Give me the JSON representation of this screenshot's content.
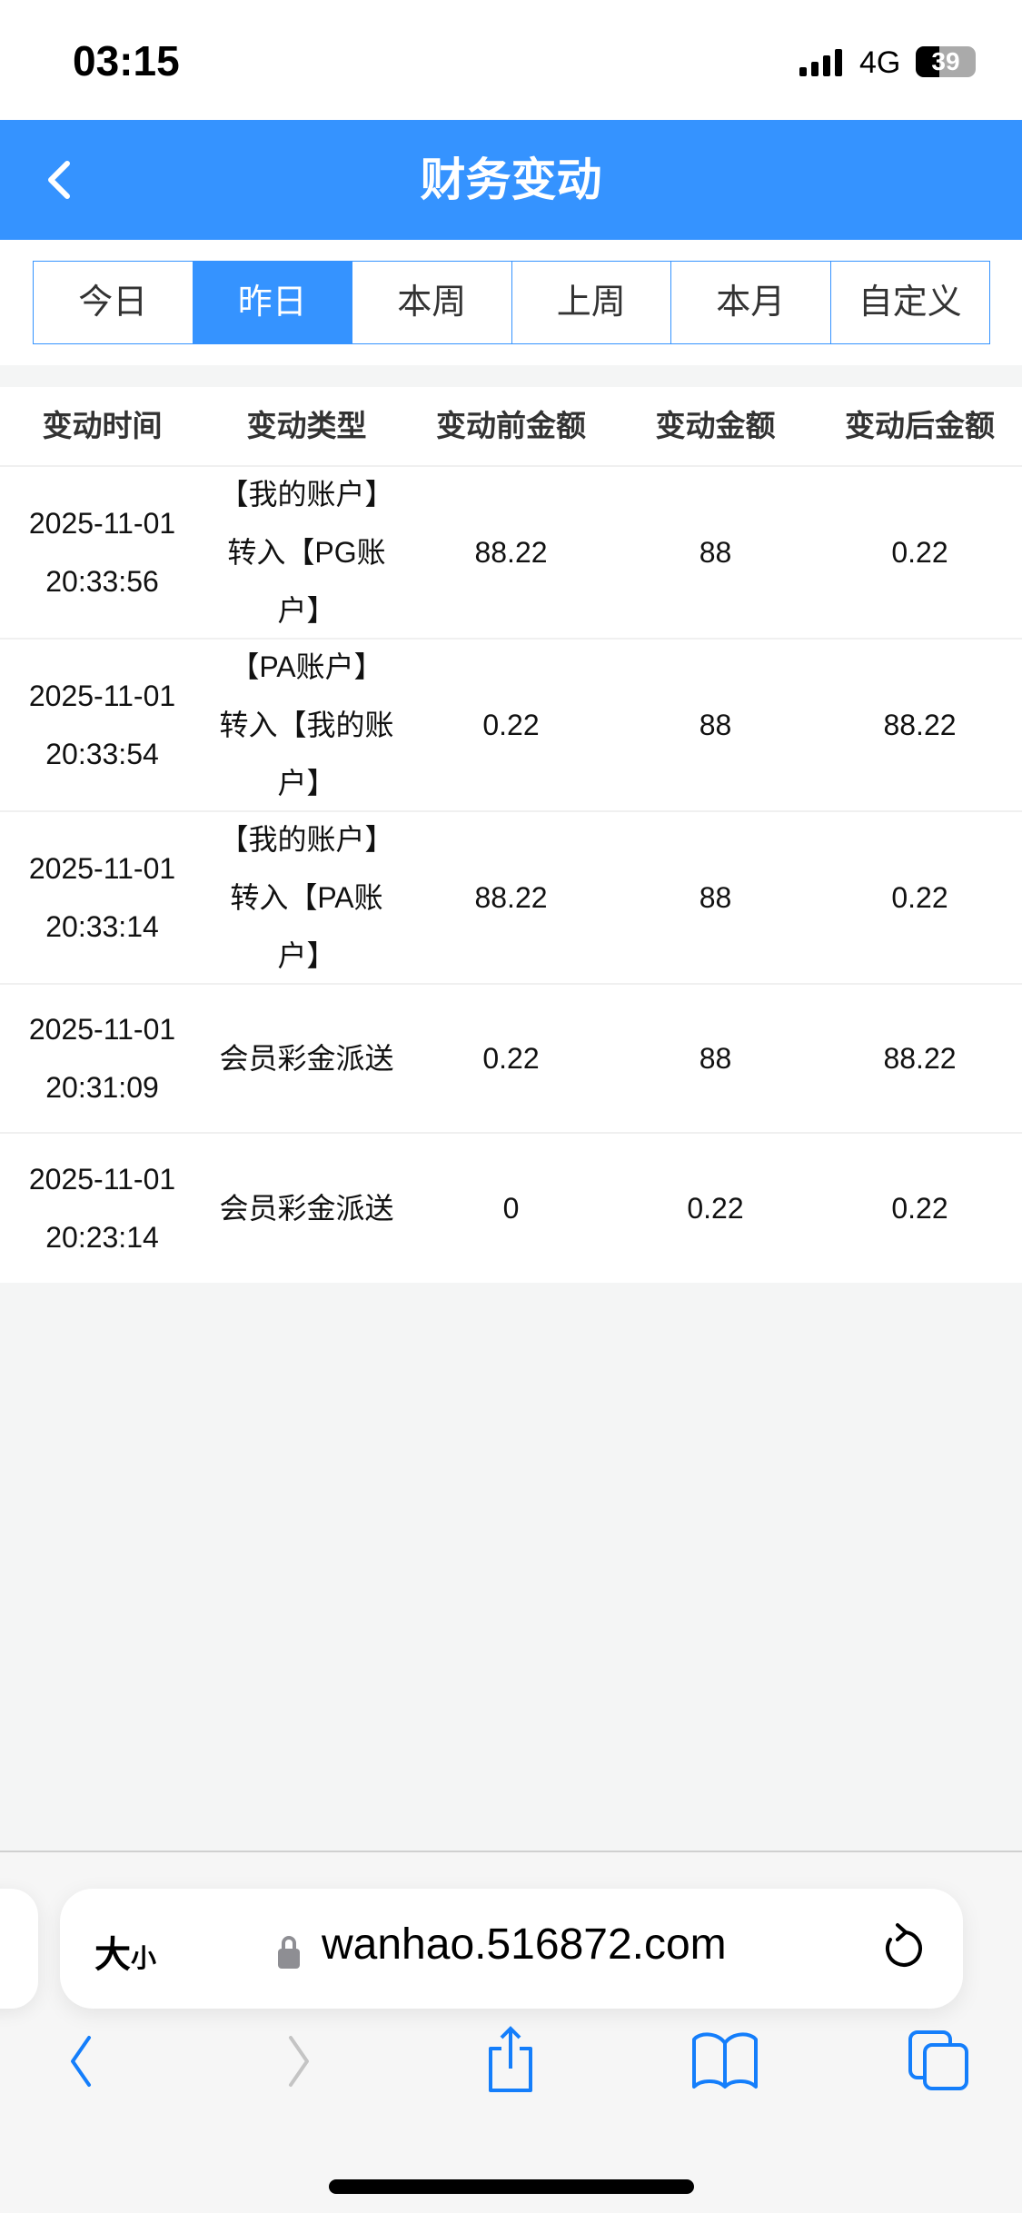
{
  "status_bar": {
    "time": "03:15",
    "network": "4G",
    "battery": "39",
    "battery_level": 39
  },
  "header": {
    "title": "财务变动",
    "back_icon": "chevron-left-icon"
  },
  "tabs": [
    {
      "label": "今日",
      "active": false
    },
    {
      "label": "昨日",
      "active": true
    },
    {
      "label": "本周",
      "active": false
    },
    {
      "label": "上周",
      "active": false
    },
    {
      "label": "本月",
      "active": false
    },
    {
      "label": "自定义",
      "active": false
    }
  ],
  "table": {
    "columns": [
      "变动时间",
      "变动类型",
      "变动前金额",
      "变动金额",
      "变动后金额"
    ],
    "rows": [
      {
        "date": "2025-11-01",
        "time": "20:33:56",
        "type": "【我的账户】转入【PG账户】",
        "before": "88.22",
        "amount": "88",
        "after": "0.22"
      },
      {
        "date": "2025-11-01",
        "time": "20:33:54",
        "type": "【PA账户】转入【我的账户】",
        "before": "0.22",
        "amount": "88",
        "after": "88.22"
      },
      {
        "date": "2025-11-01",
        "time": "20:33:14",
        "type": "【我的账户】转入【PA账户】",
        "before": "88.22",
        "amount": "88",
        "after": "0.22"
      },
      {
        "date": "2025-11-01",
        "time": "20:31:09",
        "type": "会员彩金派送",
        "before": "0.22",
        "amount": "88",
        "after": "88.22"
      },
      {
        "date": "2025-11-01",
        "time": "20:23:14",
        "type": "会员彩金派送",
        "before": "0",
        "amount": "0.22",
        "after": "0.22"
      }
    ]
  },
  "browser": {
    "text_size_label_big": "大",
    "text_size_label_small": "小",
    "url": "wanhao.516872.com",
    "accent": "#147efb"
  }
}
